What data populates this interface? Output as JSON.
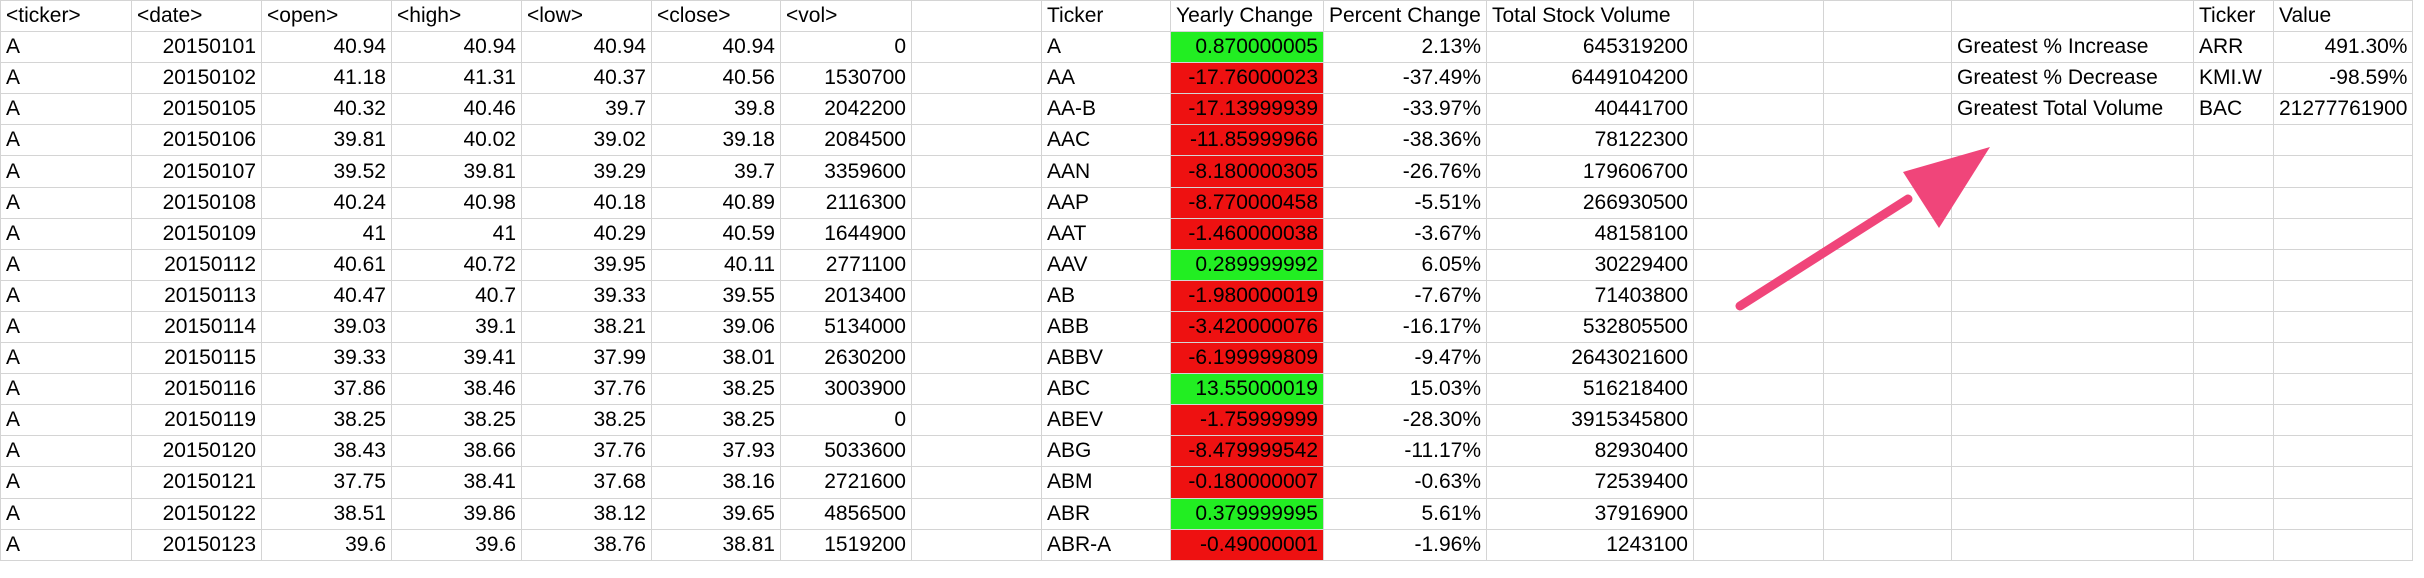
{
  "headers": [
    "<ticker>",
    "<date>",
    "<open>",
    "<high>",
    "<low>",
    "<close>",
    "<vol>",
    "",
    "Ticker",
    "Yearly Change",
    "Percent Change",
    "Total Stock Volume",
    "",
    "",
    "",
    "Ticker",
    "Value"
  ],
  "raw_rows": [
    [
      "A",
      "20150101",
      "40.94",
      "40.94",
      "40.94",
      "40.94",
      "0"
    ],
    [
      "A",
      "20150102",
      "41.18",
      "41.31",
      "40.37",
      "40.56",
      "1530700"
    ],
    [
      "A",
      "20150105",
      "40.32",
      "40.46",
      "39.7",
      "39.8",
      "2042200"
    ],
    [
      "A",
      "20150106",
      "39.81",
      "40.02",
      "39.02",
      "39.18",
      "2084500"
    ],
    [
      "A",
      "20150107",
      "39.52",
      "39.81",
      "39.29",
      "39.7",
      "3359600"
    ],
    [
      "A",
      "20150108",
      "40.24",
      "40.98",
      "40.18",
      "40.89",
      "2116300"
    ],
    [
      "A",
      "20150109",
      "41",
      "41",
      "40.29",
      "40.59",
      "1644900"
    ],
    [
      "A",
      "20150112",
      "40.61",
      "40.72",
      "39.95",
      "40.11",
      "2771100"
    ],
    [
      "A",
      "20150113",
      "40.47",
      "40.7",
      "39.33",
      "39.55",
      "2013400"
    ],
    [
      "A",
      "20150114",
      "39.03",
      "39.1",
      "38.21",
      "39.06",
      "5134000"
    ],
    [
      "A",
      "20150115",
      "39.33",
      "39.41",
      "37.99",
      "38.01",
      "2630200"
    ],
    [
      "A",
      "20150116",
      "37.86",
      "38.46",
      "37.76",
      "38.25",
      "3003900"
    ],
    [
      "A",
      "20150119",
      "38.25",
      "38.25",
      "38.25",
      "38.25",
      "0"
    ],
    [
      "A",
      "20150120",
      "38.43",
      "38.66",
      "37.76",
      "37.93",
      "5033600"
    ],
    [
      "A",
      "20150121",
      "37.75",
      "38.41",
      "37.68",
      "38.16",
      "2721600"
    ],
    [
      "A",
      "20150122",
      "38.51",
      "39.86",
      "38.12",
      "39.65",
      "4856500"
    ],
    [
      "A",
      "20150123",
      "39.6",
      "39.6",
      "38.76",
      "38.81",
      "1519200"
    ]
  ],
  "summary_rows": [
    {
      "ticker": "A",
      "change": "0.870000005",
      "sign": "pos",
      "percent": "2.13%",
      "volume": "645319200"
    },
    {
      "ticker": "AA",
      "change": "-17.76000023",
      "sign": "neg",
      "percent": "-37.49%",
      "volume": "6449104200"
    },
    {
      "ticker": "AA-B",
      "change": "-17.13999939",
      "sign": "neg",
      "percent": "-33.97%",
      "volume": "40441700"
    },
    {
      "ticker": "AAC",
      "change": "-11.85999966",
      "sign": "neg",
      "percent": "-38.36%",
      "volume": "78122300"
    },
    {
      "ticker": "AAN",
      "change": "-8.180000305",
      "sign": "neg",
      "percent": "-26.76%",
      "volume": "179606700"
    },
    {
      "ticker": "AAP",
      "change": "-8.770000458",
      "sign": "neg",
      "percent": "-5.51%",
      "volume": "266930500"
    },
    {
      "ticker": "AAT",
      "change": "-1.460000038",
      "sign": "neg",
      "percent": "-3.67%",
      "volume": "48158100"
    },
    {
      "ticker": "AAV",
      "change": "0.289999992",
      "sign": "pos",
      "percent": "6.05%",
      "volume": "30229400"
    },
    {
      "ticker": "AB",
      "change": "-1.980000019",
      "sign": "neg",
      "percent": "-7.67%",
      "volume": "71403800"
    },
    {
      "ticker": "ABB",
      "change": "-3.420000076",
      "sign": "neg",
      "percent": "-16.17%",
      "volume": "532805500"
    },
    {
      "ticker": "ABBV",
      "change": "-6.199999809",
      "sign": "neg",
      "percent": "-9.47%",
      "volume": "2643021600"
    },
    {
      "ticker": "ABC",
      "change": "13.55000019",
      "sign": "pos",
      "percent": "15.03%",
      "volume": "516218400"
    },
    {
      "ticker": "ABEV",
      "change": "-1.75999999",
      "sign": "neg",
      "percent": "-28.30%",
      "volume": "3915345800"
    },
    {
      "ticker": "ABG",
      "change": "-8.479999542",
      "sign": "neg",
      "percent": "-11.17%",
      "volume": "82930400"
    },
    {
      "ticker": "ABM",
      "change": "-0.180000007",
      "sign": "neg",
      "percent": "-0.63%",
      "volume": "72539400"
    },
    {
      "ticker": "ABR",
      "change": "0.379999995",
      "sign": "pos",
      "percent": "5.61%",
      "volume": "37916900"
    },
    {
      "ticker": "ABR-A",
      "change": "-0.49000001",
      "sign": "neg",
      "percent": "-1.96%",
      "volume": "1243100"
    }
  ],
  "greatest": [
    {
      "label": "Greatest % Increase",
      "ticker": "ARR",
      "value": "491.30%"
    },
    {
      "label": "Greatest % Decrease",
      "ticker": "KMI.W",
      "value": "-98.59%"
    },
    {
      "label": "Greatest Total Volume",
      "ticker": "BAC",
      "value": "21277761900"
    }
  ],
  "colors": {
    "positive": "#22ee22",
    "negative": "#ee1111",
    "arrow": "#f0457a",
    "gridline": "#d4d4d4"
  },
  "icons": {
    "arrow": "pink-arrow-icon"
  }
}
